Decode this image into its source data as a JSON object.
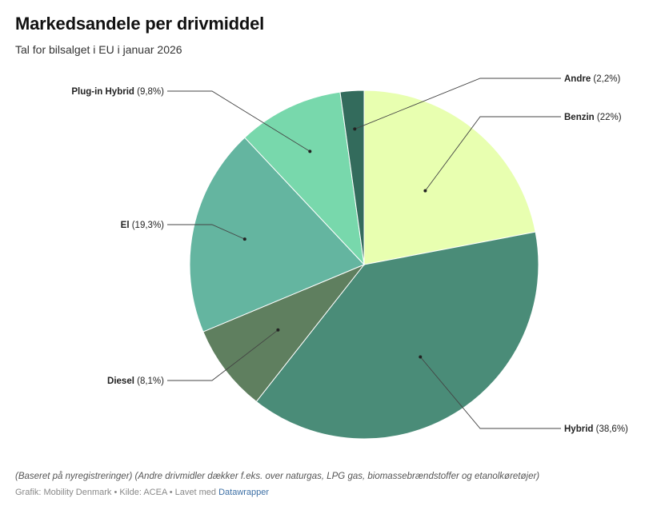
{
  "title": "Markedsandele per drivmiddel",
  "subtitle": "Tal for bilsalget i EU i januar 2026",
  "notes": "(Baseret på nyregistreringer) (Andre drivmidler dækker f.eks. over naturgas, LPG gas, biomassebrændstoffer og etanolkøretøjer)",
  "byline": {
    "prefix": "Grafik: Mobility Denmark • Kilde: ACEA • Lavet med ",
    "link": "Datawrapper"
  },
  "chart_data": {
    "type": "pie",
    "start": "12 o'clock",
    "direction": "clockwise",
    "slices": [
      {
        "name": "Benzin",
        "value": 22,
        "label": "(22%)",
        "color": "#e8ffb0"
      },
      {
        "name": "Hybrid",
        "value": 38.6,
        "label": "(38,6%)",
        "color": "#4a8c78"
      },
      {
        "name": "Diesel",
        "value": 8.1,
        "label": "(8,1%)",
        "color": "#5f7f5f"
      },
      {
        "name": "El",
        "value": 19.3,
        "label": "(19,3%)",
        "color": "#64b5a0"
      },
      {
        "name": "Plug-in Hybrid",
        "value": 9.8,
        "label": "(9,8%)",
        "color": "#78d8ac"
      },
      {
        "name": "Andre",
        "value": 2.2,
        "label": "(2,2%)",
        "color": "#336b5c"
      }
    ]
  }
}
